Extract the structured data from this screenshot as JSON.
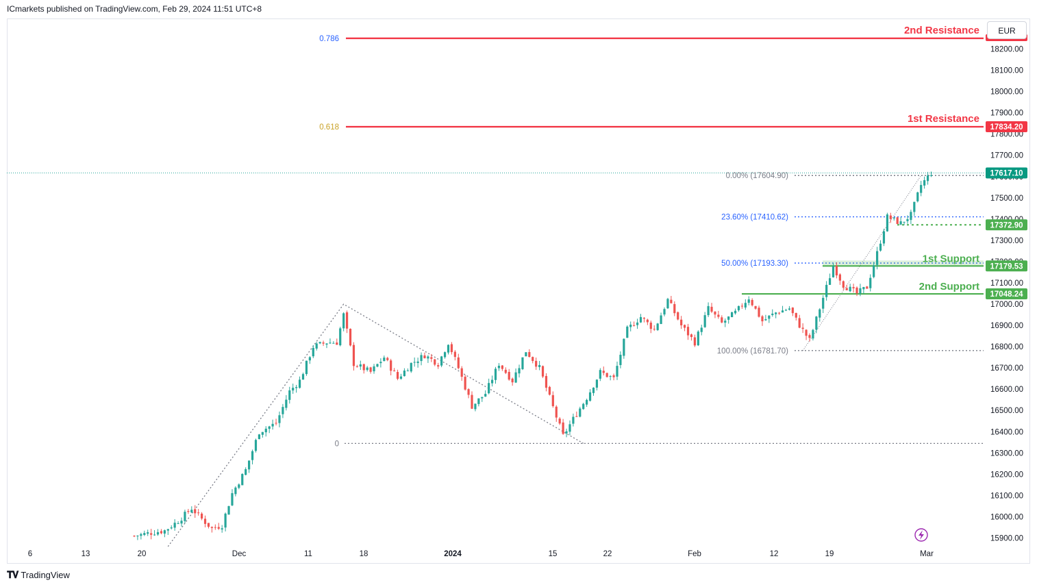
{
  "header": {
    "publisher": "ICmarkets published on TradingView.com, Feb 29, 2024 11:51 UTC+8"
  },
  "currency": "EUR",
  "footer": {
    "logo_text": "TradingView"
  },
  "colors": {
    "up": "#26a69a",
    "down": "#ef5350",
    "resistance": "#f23645",
    "support": "#4caf50",
    "fib_blue": "#2962ff",
    "fib_gold": "#c9a227",
    "grid_dots": "#787b86"
  },
  "chart_data": {
    "type": "candlestick",
    "symbol_price_axis": {
      "ylim": [
        15850,
        18330
      ],
      "ticks": [
        15900,
        16000,
        16100,
        16200,
        16300,
        16400,
        16500,
        16600,
        16700,
        16800,
        16900,
        17000,
        17100,
        17200,
        17300,
        17400,
        17500,
        17600,
        17700,
        17800,
        17900,
        18000,
        18100,
        18200
      ],
      "tick_labels": [
        "15900.00",
        "16000.00",
        "16100.00",
        "16200.00",
        "16300.00",
        "16400.00",
        "16500.00",
        "16600.00",
        "16700.00",
        "16800.00",
        "16900.00",
        "17000.00",
        "17100.00",
        "17200.00",
        "17300.00",
        "17400.00",
        "17500.00",
        "17600.00",
        "17700.00",
        "17800.00",
        "17900.00",
        "18000.00",
        "18100.00",
        "18200.00"
      ]
    },
    "time_axis": {
      "labels": [
        "6",
        "13",
        "20",
        "Dec",
        "11",
        "18",
        "2024",
        "15",
        "22",
        "Feb",
        "12",
        "19",
        "Mar"
      ],
      "bold": [
        "2024"
      ]
    },
    "price_tags": [
      {
        "value": 17834.2,
        "label": "17834.20",
        "color": "#f23645"
      },
      {
        "value": 17617.1,
        "label": "17617.10",
        "color": "#089981"
      },
      {
        "value": 17372.9,
        "label": "17372.90",
        "color": "#4caf50"
      },
      {
        "value": 17179.53,
        "label": "17179.53",
        "color": "#4caf50"
      },
      {
        "value": 17048.24,
        "label": "17048.24",
        "color": "#4caf50"
      }
    ],
    "levels": [
      {
        "name": "2nd Resistance",
        "value": 18250,
        "color": "#f23645"
      },
      {
        "name": "1st Resistance",
        "value": 17834.2,
        "color": "#f23645"
      },
      {
        "name": "1st Support",
        "value": 17179.53,
        "color": "#4caf50"
      },
      {
        "name": "2nd Support",
        "value": 17048.24,
        "color": "#4caf50"
      }
    ],
    "fib_extension": [
      {
        "label": "0.786",
        "value": 18250,
        "color": "#2962ff"
      },
      {
        "label": "0.618",
        "value": 17834.2,
        "color": "#c9a227"
      },
      {
        "label": "0",
        "value": 16345,
        "color": "#787b86"
      }
    ],
    "fib_retracement": [
      {
        "label": "0.00% (17604.90)",
        "value": 17604.9,
        "color": "#787b86"
      },
      {
        "label": "23.60% (17410.62)",
        "value": 17410.62,
        "color": "#2962ff"
      },
      {
        "label": "50.00% (17193.30)",
        "value": 17193.3,
        "color": "#2962ff"
      },
      {
        "label": "100.00% (16781.70)",
        "value": 16781.7,
        "color": "#787b86"
      }
    ],
    "current_price": 17617.1,
    "series_close_anchors": [
      [
        0,
        15910
      ],
      [
        5,
        15925
      ],
      [
        9,
        15935
      ],
      [
        13,
        15980
      ],
      [
        17,
        16040
      ],
      [
        20,
        15990
      ],
      [
        23,
        15945
      ],
      [
        26,
        15960
      ],
      [
        29,
        16110
      ],
      [
        33,
        16220
      ],
      [
        37,
        16400
      ],
      [
        42,
        16440
      ],
      [
        46,
        16590
      ],
      [
        49,
        16640
      ],
      [
        53,
        16800
      ],
      [
        57,
        16820
      ],
      [
        60,
        16820
      ],
      [
        62,
        16950
      ],
      [
        65,
        16720
      ],
      [
        70,
        16680
      ],
      [
        74,
        16750
      ],
      [
        78,
        16650
      ],
      [
        82,
        16720
      ],
      [
        86,
        16760
      ],
      [
        90,
        16720
      ],
      [
        93,
        16820
      ],
      [
        96,
        16700
      ],
      [
        100,
        16520
      ],
      [
        104,
        16580
      ],
      [
        108,
        16720
      ],
      [
        112,
        16640
      ],
      [
        116,
        16780
      ],
      [
        120,
        16700
      ],
      [
        123,
        16560
      ],
      [
        127,
        16380
      ],
      [
        130,
        16460
      ],
      [
        134,
        16560
      ],
      [
        138,
        16680
      ],
      [
        142,
        16650
      ],
      [
        146,
        16880
      ],
      [
        150,
        16940
      ],
      [
        154,
        16880
      ],
      [
        158,
        17020
      ],
      [
        162,
        16900
      ],
      [
        166,
        16820
      ],
      [
        170,
        16980
      ],
      [
        174,
        16910
      ],
      [
        178,
        16960
      ],
      [
        182,
        17030
      ],
      [
        186,
        16920
      ],
      [
        190,
        16960
      ],
      [
        194,
        16980
      ],
      [
        197,
        16900
      ],
      [
        200,
        16830
      ],
      [
        203,
        16980
      ],
      [
        207,
        17180
      ],
      [
        210,
        17090
      ],
      [
        214,
        17050
      ],
      [
        217,
        17080
      ],
      [
        220,
        17240
      ],
      [
        223,
        17410
      ],
      [
        227,
        17380
      ],
      [
        230,
        17420
      ],
      [
        233,
        17560
      ],
      [
        236,
        17617
      ]
    ]
  }
}
